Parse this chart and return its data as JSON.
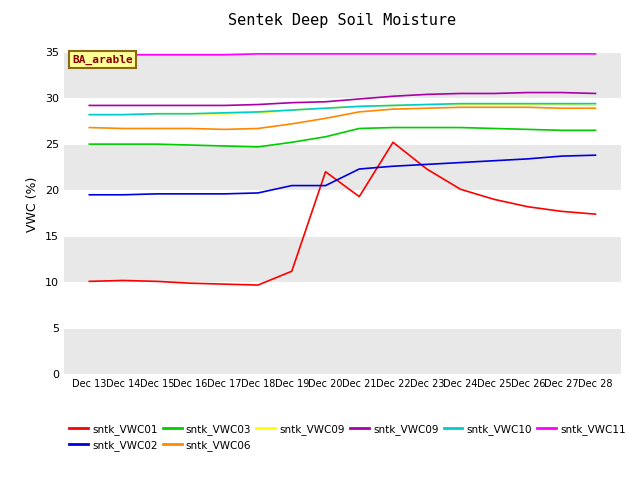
{
  "title": "Sentek Deep Soil Moisture",
  "ylabel": "VWC (%)",
  "ylim": [
    0,
    37
  ],
  "yticks": [
    0,
    5,
    10,
    15,
    20,
    25,
    30,
    35
  ],
  "annotation_text": "BA_arable",
  "x_labels": [
    "Dec 13",
    "Dec 14",
    "Dec 15",
    "Dec 16",
    "Dec 17",
    "Dec 18",
    "Dec 19",
    "Dec 20",
    "Dec 21",
    "Dec 22",
    "Dec 23",
    "Dec 24",
    "Dec 25",
    "Dec 26",
    "Dec 27",
    "Dec 28"
  ],
  "series": [
    {
      "key": "sntk_VWC01",
      "color": "#ff0000",
      "values": [
        10.1,
        10.2,
        10.1,
        9.9,
        9.8,
        9.7,
        11.2,
        22.0,
        19.3,
        25.2,
        22.3,
        20.1,
        19.0,
        18.2,
        17.7,
        17.4
      ]
    },
    {
      "key": "sntk_VWC02",
      "color": "#0000dd",
      "values": [
        19.5,
        19.5,
        19.6,
        19.6,
        19.6,
        19.7,
        20.5,
        20.5,
        22.3,
        22.6,
        22.8,
        23.0,
        23.2,
        23.4,
        23.7,
        23.8
      ]
    },
    {
      "key": "sntk_VWC03",
      "color": "#00cc00",
      "values": [
        25.0,
        25.0,
        25.0,
        24.9,
        24.8,
        24.7,
        25.2,
        25.8,
        26.7,
        26.8,
        26.8,
        26.8,
        26.7,
        26.6,
        26.5,
        26.5
      ]
    },
    {
      "key": "sntk_VWC06",
      "color": "#ff8800",
      "values": [
        26.8,
        26.7,
        26.7,
        26.7,
        26.6,
        26.7,
        27.2,
        27.8,
        28.5,
        28.8,
        28.9,
        29.0,
        29.0,
        29.0,
        28.9,
        28.9
      ]
    },
    {
      "key": "sntk_VWC09",
      "color": "#ffff00",
      "values": [
        28.2,
        28.2,
        28.3,
        28.3,
        28.3,
        28.4,
        28.7,
        28.9,
        29.1,
        29.2,
        29.3,
        29.3,
        29.3,
        29.3,
        29.3,
        29.2
      ]
    },
    {
      "key": "sntk_VWC09b",
      "color": "#aa00aa",
      "values": [
        29.2,
        29.2,
        29.2,
        29.2,
        29.2,
        29.3,
        29.5,
        29.6,
        29.9,
        30.2,
        30.4,
        30.5,
        30.5,
        30.6,
        30.6,
        30.5
      ]
    },
    {
      "key": "sntk_VWC10",
      "color": "#00cccc",
      "values": [
        28.2,
        28.2,
        28.3,
        28.3,
        28.4,
        28.5,
        28.7,
        28.9,
        29.1,
        29.2,
        29.3,
        29.4,
        29.4,
        29.4,
        29.4,
        29.4
      ]
    },
    {
      "key": "sntk_VWC11",
      "color": "#ff00ff",
      "values": [
        34.8,
        34.7,
        34.7,
        34.7,
        34.7,
        34.8,
        34.8,
        34.8,
        34.8,
        34.8,
        34.8,
        34.8,
        34.8,
        34.8,
        34.8,
        34.8
      ]
    }
  ],
  "legend_entries": [
    {
      "label": "sntk_VWC01",
      "color": "#ff0000"
    },
    {
      "label": "sntk_VWC02",
      "color": "#0000dd"
    },
    {
      "label": "sntk_VWC03",
      "color": "#00cc00"
    },
    {
      "label": "sntk_VWC06",
      "color": "#ff8800"
    },
    {
      "label": "sntk_VWC09",
      "color": "#ffff00"
    },
    {
      "label": "sntk_VWC09",
      "color": "#aa00aa"
    },
    {
      "label": "sntk_VWC10",
      "color": "#00cccc"
    },
    {
      "label": "sntk_VWC11",
      "color": "#ff00ff"
    }
  ],
  "figsize": [
    6.4,
    4.8
  ],
  "dpi": 100
}
